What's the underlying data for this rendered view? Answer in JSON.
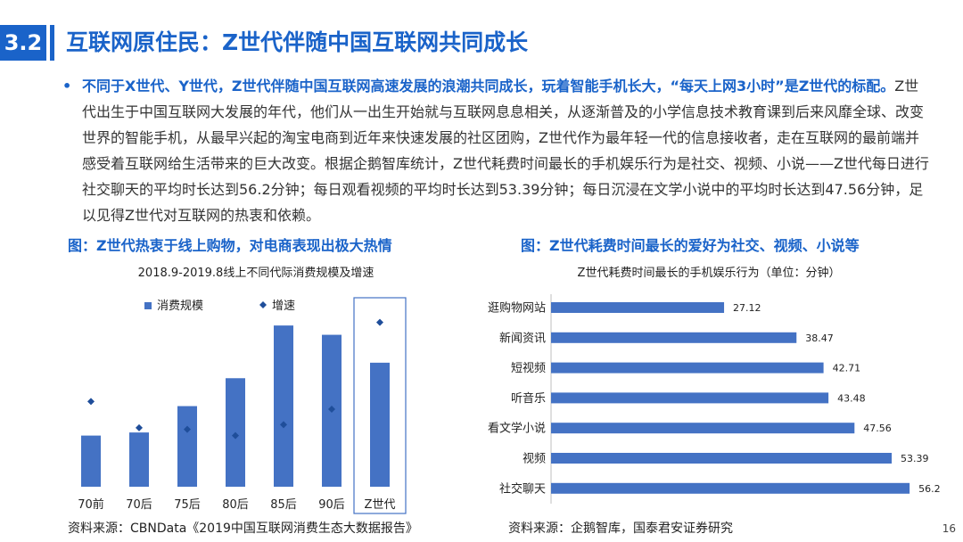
{
  "header": {
    "section_number": "3.2",
    "title": "互联网原住民：Z世代伴随中国互联网共同成长"
  },
  "paragraph": {
    "bullet": "•",
    "highlight": "不同于X世代、Y世代，Z世代伴随中国互联网高速发展的浪潮共同成长，玩着智能手机长大，“每天上网3小时”是Z世代的标配。",
    "body": "Z世代出生于中国互联网大发展的年代，他们从一出生开始就与互联网息息相关，从逐渐普及的小学信息技术教育课到后来风靡全球、改变世界的智能手机，从最早兴起的淘宝电商到近年来快速发展的社区团购，Z世代作为最年轻一代的信息接收者，走在互联网的最前端并感受着互联网给生活带来的巨大改变。根据企鹅智库统计，Z世代耗费时间最长的手机娱乐行为是社交、视频、小说——Z世代每日进行社交聊天的平均时长达到56.2分钟；每日观看视频的平均时长达到53.39分钟；每日沉浸在文学小说中的平均时长达到47.56分钟，足以见得Z世代对互联网的热衷和依赖。"
  },
  "left_figure": {
    "caption": "图：Z世代热衷于线上购物，对电商表现出极大热情",
    "source": "资料来源：CBNData《2019中国互联网消费生态大数据报告》"
  },
  "right_figure": {
    "caption": "图：Z世代耗费时间最长的爱好为社交、视频、小说等",
    "source": "资料来源：企鹅智库，国泰君安证券研究"
  },
  "page_number": "16",
  "chart_data": [
    {
      "type": "bar",
      "title": "2018.9-2019.8线上不同代际消费规模及增速",
      "categories": [
        "70前",
        "70后",
        "75后",
        "80后",
        "85后",
        "90后",
        "Z世代"
      ],
      "series": [
        {
          "name": "消费规模",
          "kind": "bar",
          "color": "#4472c4",
          "values": [
            33,
            35,
            52,
            70,
            104,
            98,
            80
          ]
        },
        {
          "name": "增速",
          "kind": "scatter",
          "color": "#1f4e9a",
          "marker": "diamond",
          "values": [
            55,
            38,
            37,
            33,
            40,
            50,
            106
          ]
        }
      ],
      "ylim": [
        0,
        115
      ],
      "axes_visible": false,
      "grid": false,
      "legend": "top-left",
      "highlight_category": "Z世代"
    },
    {
      "type": "bar",
      "orientation": "horizontal",
      "title": "Z世代耗费时间最长的手机娱乐行为（单位：分钟）",
      "categories": [
        "逛购物网站",
        "新闻资讯",
        "短视频",
        "听音乐",
        "看文学小说",
        "视频",
        "社交聊天"
      ],
      "values": [
        27.12,
        38.47,
        42.71,
        43.48,
        47.56,
        53.39,
        56.2
      ],
      "value_labels": [
        "27.12",
        "38.47",
        "42.71",
        "43.48",
        "47.56",
        "53.39",
        "56.2"
      ],
      "xlim": [
        0,
        58
      ],
      "color": "#4472c4",
      "grid": false,
      "legend": "none"
    }
  ]
}
